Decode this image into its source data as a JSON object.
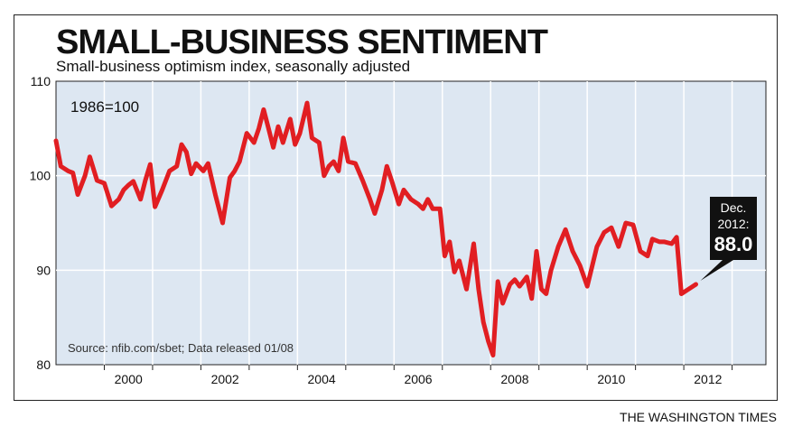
{
  "title": "SMALL-BUSINESS SENTIMENT",
  "subtitle": "Small-business optimism index, seasonally adjusted",
  "credit": "THE WASHINGTON TIMES",
  "colors": {
    "plot_bg": "#dde7f2",
    "line": "#e11e22",
    "grid": "#ffffff",
    "callout_bg": "#111111"
  },
  "chart_data": {
    "type": "line",
    "title": "SMALL-BUSINESS SENTIMENT",
    "subtitle": "Small-business optimism index, seasonally adjusted",
    "base_note": "1986=100",
    "source": "Source: nfib.com/sbet; Data released 01/08",
    "xlabel": "",
    "ylabel": "",
    "ylim": [
      80,
      110
    ],
    "xlim": [
      1999.0,
      2013.7
    ],
    "yticks": [
      "80",
      "90",
      "100",
      "110"
    ],
    "xticks": [
      "2000",
      "2002",
      "2004",
      "2006",
      "2008",
      "2010",
      "2012"
    ],
    "grid": true,
    "callout": {
      "line1": "Dec.",
      "line2": "2012:",
      "value": "88.0"
    },
    "series": [
      {
        "x": [
          1999.0,
          1999.1,
          1999.25,
          1999.35,
          1999.45,
          1999.6,
          1999.7,
          1999.85,
          2000.0,
          2000.15,
          2000.3,
          2000.4,
          2000.5,
          2000.6,
          2000.75,
          2000.85,
          2000.95,
          2001.05,
          2001.2,
          2001.35,
          2001.5,
          2001.6,
          2001.7,
          2001.8,
          2001.9,
          2002.05,
          2002.15,
          2002.3,
          2002.45,
          2002.6,
          2002.7,
          2002.8,
          2002.95,
          2003.1,
          2003.2,
          2003.3,
          2003.4,
          2003.5,
          2003.6,
          2003.7,
          2003.85,
          2003.95,
          2004.05,
          2004.2,
          2004.3,
          2004.45,
          2004.55,
          2004.65,
          2004.75,
          2004.85,
          2004.95,
          2005.05,
          2005.2,
          2005.35,
          2005.5,
          2005.6,
          2005.75,
          2005.85,
          2005.95,
          2006.1,
          2006.2,
          2006.35,
          2006.5,
          2006.6,
          2006.7,
          2006.8,
          2006.95,
          2007.05,
          2007.15,
          2007.25,
          2007.35,
          2007.5,
          2007.65,
          2007.75,
          2007.85,
          2007.95,
          2008.05,
          2008.15,
          2008.25,
          2008.4,
          2008.5,
          2008.6,
          2008.75,
          2008.85,
          2008.95,
          2009.05,
          2009.15,
          2009.25,
          2009.4,
          2009.55,
          2009.7,
          2009.85,
          2010.0,
          2010.2,
          2010.35,
          2010.5,
          2010.65,
          2010.8,
          2010.95,
          2011.1,
          2011.25,
          2011.35,
          2011.5,
          2011.6,
          2011.75,
          2011.85,
          2011.95,
          2012.1,
          2012.25,
          2012.4,
          2012.6,
          2012.75,
          2012.85,
          2012.95
        ],
        "values": [
          103.7,
          101.0,
          100.5,
          100.3,
          98.0,
          100.0,
          102.0,
          99.5,
          99.2,
          96.8,
          97.5,
          98.5,
          99.0,
          99.4,
          97.5,
          99.5,
          101.2,
          96.7,
          98.5,
          100.5,
          101.0,
          103.3,
          102.5,
          100.2,
          101.3,
          100.5,
          101.3,
          98.0,
          95.0,
          99.8,
          100.5,
          101.5,
          104.5,
          103.5,
          105.0,
          107.0,
          105.0,
          103.0,
          105.2,
          103.5,
          106.0,
          103.3,
          104.5,
          107.7,
          104.0,
          103.5,
          100.0,
          101.0,
          101.5,
          100.5,
          104.0,
          101.5,
          101.3,
          99.5,
          97.5,
          96.0,
          98.5,
          101.0,
          99.5,
          97.0,
          98.5,
          97.5,
          97.0,
          96.5,
          97.5,
          96.5,
          96.5,
          91.5,
          93.0,
          89.8,
          91.0,
          88.0,
          92.8,
          88.0,
          84.5,
          82.5,
          81.0,
          88.8,
          86.5,
          88.5,
          89.0,
          88.3,
          89.3,
          87.0,
          92.0,
          88.0,
          87.5,
          90.0,
          92.5,
          94.3,
          92.0,
          90.5,
          88.3,
          92.5,
          94.0,
          94.5,
          92.5,
          95.0,
          94.8,
          92.0,
          91.5,
          93.3,
          93.0,
          93.0,
          92.8,
          93.5,
          87.5,
          88.0,
          88.5,
          null,
          null,
          null,
          null,
          null
        ]
      }
    ]
  }
}
